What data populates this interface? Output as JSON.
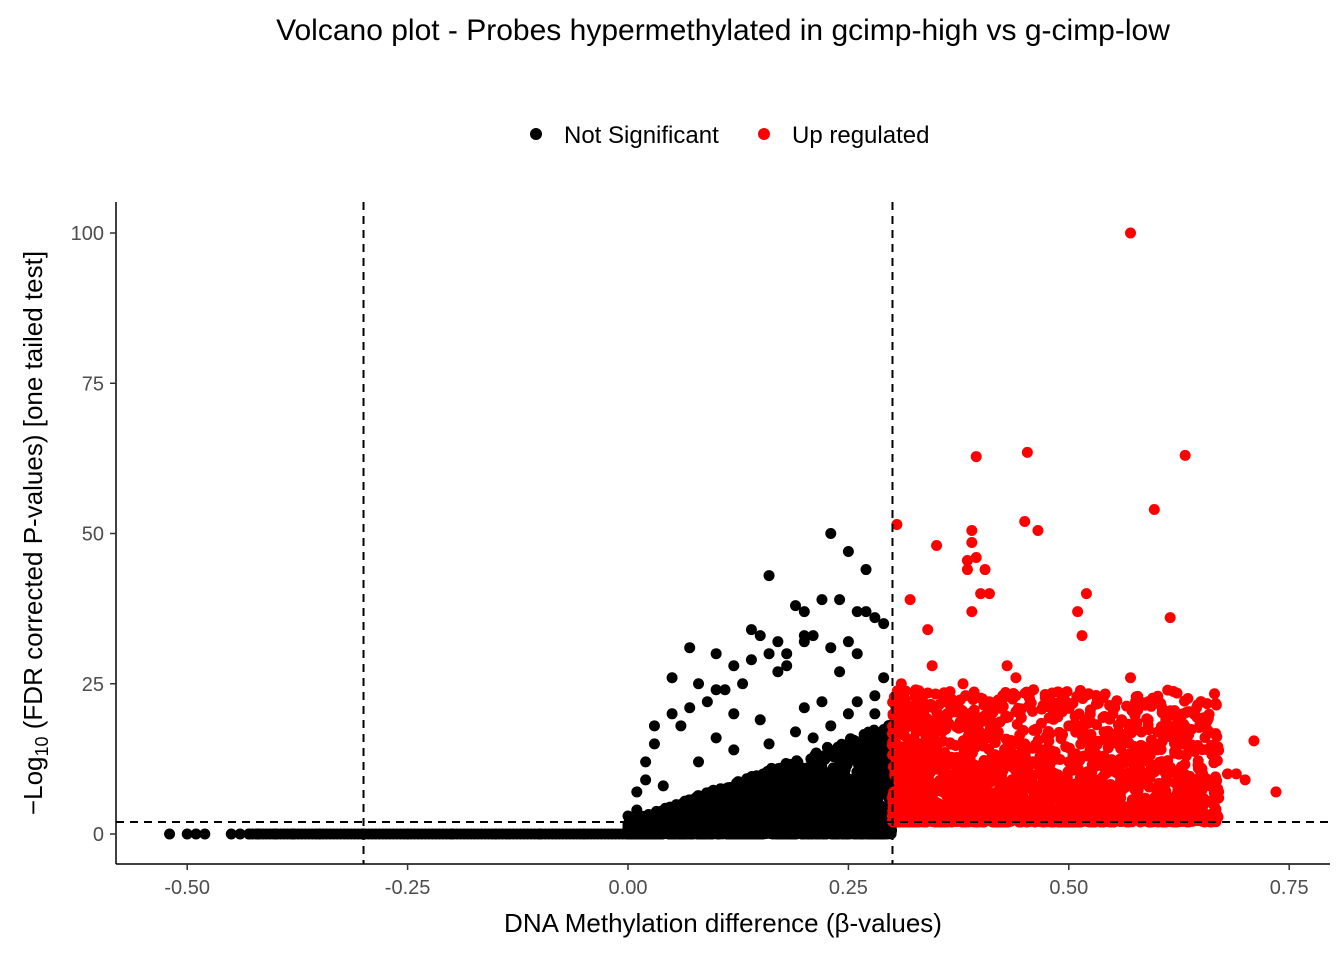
{
  "chart_data": {
    "type": "scatter",
    "title": "Volcano plot - Probes hypermethylated in gcimp-high vs g-cimp-low",
    "xlabel": "DNA Methylation difference (β-values)",
    "ylabel_prefix": "−Log",
    "ylabel_sub": "10",
    "ylabel_suffix": " (FDR corrected P-values) [one tailed test]",
    "xlim": [
      -0.5,
      0.75
    ],
    "ylim": [
      0,
      100
    ],
    "xticks": [
      -0.5,
      -0.25,
      0,
      0.25,
      0.5,
      0.75
    ],
    "xtick_labels": [
      "-0.50",
      "-0.25",
      "0.00",
      "0.25",
      "0.50",
      "0.75"
    ],
    "yticks": [
      0,
      25,
      50,
      75,
      100
    ],
    "ytick_labels": [
      "0",
      "25",
      "50",
      "75",
      "100"
    ],
    "grid": false,
    "legend_position": "top",
    "thresholds": {
      "vlines": [
        -0.3,
        0.3
      ],
      "hline": 2
    },
    "series": [
      {
        "name": "Not Significant",
        "color": "#000000",
        "x": [
          -0.52,
          -0.5,
          -0.49,
          -0.48,
          -0.45,
          -0.44,
          -0.43,
          -0.42,
          -0.4,
          -0.38,
          -0.35,
          -0.3,
          -0.25,
          -0.2,
          -0.15,
          -0.1,
          -0.05,
          0.0,
          0.0,
          0.01,
          0.01,
          0.02,
          0.02,
          0.03,
          0.03,
          0.05,
          0.05,
          0.07,
          0.08,
          0.1,
          0.1,
          0.12,
          0.12,
          0.14,
          0.14,
          0.15,
          0.16,
          0.16,
          0.17,
          0.17,
          0.18,
          0.19,
          0.2,
          0.2,
          0.21,
          0.22,
          0.23,
          0.23,
          0.24,
          0.25,
          0.25,
          0.26,
          0.27,
          0.28,
          0.29,
          0.29,
          0.07,
          0.09,
          0.11,
          0.13,
          0.18,
          0.2,
          0.22,
          0.24,
          0.26,
          0.27,
          0.28,
          0.06,
          0.1,
          0.15,
          0.2,
          0.25,
          0.28,
          0.04,
          0.08,
          0.12,
          0.16,
          0.19,
          0.21,
          0.23,
          0.26
        ],
        "y": [
          0,
          0,
          0,
          0,
          0,
          0,
          0,
          0,
          0,
          0,
          0,
          0,
          0,
          0,
          0,
          0,
          0,
          1,
          3,
          4,
          7,
          9,
          12,
          15,
          18,
          20,
          26,
          31,
          25,
          30,
          24,
          28,
          20,
          29,
          34,
          33,
          43,
          30,
          32,
          27,
          28,
          38,
          37,
          33,
          33,
          39,
          50,
          31,
          39,
          47,
          32,
          37,
          37,
          36,
          35,
          26,
          21,
          22,
          24,
          25,
          30,
          32,
          22,
          27,
          30,
          44,
          20,
          18,
          16,
          19,
          21,
          20,
          23,
          8,
          12,
          14,
          15,
          17,
          16,
          18,
          22
        ]
      },
      {
        "name": "Up regulated",
        "color": "#ff0000",
        "x": [
          0.57,
          0.453,
          0.395,
          0.632,
          0.597,
          0.305,
          0.45,
          0.39,
          0.465,
          0.39,
          0.35,
          0.385,
          0.395,
          0.385,
          0.4,
          0.405,
          0.41,
          0.32,
          0.34,
          0.39,
          0.52,
          0.51,
          0.515,
          0.615,
          0.41,
          0.375,
          0.44,
          0.425,
          0.46,
          0.55,
          0.6,
          0.62,
          0.54,
          0.59,
          0.61,
          0.63,
          0.66,
          0.67,
          0.71,
          0.735,
          0.69,
          0.68,
          0.65,
          0.6,
          0.58,
          0.55,
          0.5,
          0.47,
          0.45,
          0.42,
          0.38,
          0.35,
          0.33,
          0.31,
          0.31,
          0.32,
          0.36,
          0.4,
          0.44,
          0.48,
          0.52,
          0.56,
          0.6,
          0.64,
          0.67,
          0.7,
          0.54,
          0.5,
          0.46,
          0.43,
          0.37,
          0.34,
          0.3,
          0.3,
          0.33,
          0.36,
          0.41,
          0.47,
          0.53,
          0.58,
          0.62,
          0.66,
          0.345,
          0.43,
          0.49,
          0.57,
          0.63,
          0.56,
          0.5,
          0.44,
          0.38
        ],
        "y": [
          100,
          63.5,
          62.8,
          63,
          54,
          51.5,
          52,
          50.5,
          50.5,
          48.5,
          48,
          44,
          46,
          45.5,
          40,
          44,
          40,
          39,
          34,
          37,
          40,
          37,
          33,
          36,
          22,
          22,
          26,
          23,
          24,
          20,
          22,
          18,
          17,
          19,
          19,
          15,
          8,
          6,
          15.5,
          7,
          10,
          10,
          11,
          14,
          12,
          16,
          12,
          14,
          15,
          17,
          19,
          21,
          23,
          25,
          20,
          18,
          13,
          11,
          9,
          8,
          10,
          9,
          7,
          8,
          7,
          9,
          5,
          4,
          6,
          5,
          4,
          3,
          3,
          6,
          5,
          7,
          4,
          3,
          5,
          4,
          5,
          3,
          28,
          28,
          22,
          26,
          20,
          19,
          18,
          23,
          25
        ]
      }
    ]
  }
}
